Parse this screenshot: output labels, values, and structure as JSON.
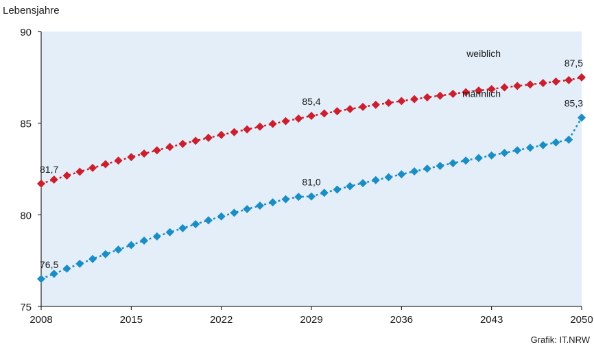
{
  "chart_data": {
    "type": "line",
    "ylabel": "Lebensjahre",
    "xlabel": "",
    "xlim": [
      2008,
      2050
    ],
    "ylim": [
      75,
      90
    ],
    "x_ticks": [
      "2008",
      "2015",
      "2022",
      "2029",
      "2036",
      "2043",
      "2050"
    ],
    "y_ticks": [
      "75",
      "80",
      "85",
      "90"
    ],
    "x": [
      2008,
      2009,
      2010,
      2011,
      2012,
      2013,
      2014,
      2015,
      2016,
      2017,
      2018,
      2019,
      2020,
      2021,
      2022,
      2023,
      2024,
      2025,
      2026,
      2027,
      2028,
      2029,
      2030,
      2031,
      2032,
      2033,
      2034,
      2035,
      2036,
      2037,
      2038,
      2039,
      2040,
      2041,
      2042,
      2043,
      2044,
      2045,
      2046,
      2047,
      2048,
      2049,
      2050
    ],
    "series": [
      {
        "name": "weiblich",
        "color": "#cc1f2e",
        "values": [
          81.7,
          81.92,
          82.14,
          82.35,
          82.56,
          82.76,
          82.96,
          83.15,
          83.34,
          83.52,
          83.7,
          83.87,
          84.04,
          84.2,
          84.36,
          84.51,
          84.66,
          84.81,
          84.96,
          85.11,
          85.25,
          85.4,
          85.53,
          85.65,
          85.77,
          85.89,
          86.0,
          86.11,
          86.21,
          86.31,
          86.41,
          86.5,
          86.6,
          86.69,
          86.78,
          86.86,
          86.95,
          87.03,
          87.11,
          87.19,
          87.27,
          87.35,
          87.5
        ]
      },
      {
        "name": "männlich",
        "color": "#1a8ec4",
        "values": [
          76.5,
          76.78,
          77.06,
          77.33,
          77.59,
          77.85,
          78.1,
          78.35,
          78.59,
          78.82,
          79.05,
          79.27,
          79.49,
          79.7,
          79.91,
          80.11,
          80.31,
          80.5,
          80.68,
          80.85,
          80.98,
          81.0,
          81.2,
          81.38,
          81.56,
          81.73,
          81.89,
          82.05,
          82.21,
          82.37,
          82.52,
          82.67,
          82.82,
          82.96,
          83.1,
          83.24,
          83.38,
          83.52,
          83.66,
          83.8,
          83.95,
          84.1,
          85.3
        ]
      }
    ],
    "annotations": [
      {
        "series": 0,
        "x": 2008,
        "text": "81,7"
      },
      {
        "series": 0,
        "x": 2029,
        "text": "85,4"
      },
      {
        "series": 0,
        "x": 2050,
        "text": "87,5"
      },
      {
        "series": 1,
        "x": 2008,
        "text": "76,5"
      },
      {
        "series": 1,
        "x": 2029,
        "text": "81,0"
      },
      {
        "series": 1,
        "x": 2050,
        "text": "85,3"
      }
    ],
    "plot_background": "#e3eef9",
    "grid": false
  },
  "footer": {
    "source": "Grafik: IT.NRW"
  }
}
